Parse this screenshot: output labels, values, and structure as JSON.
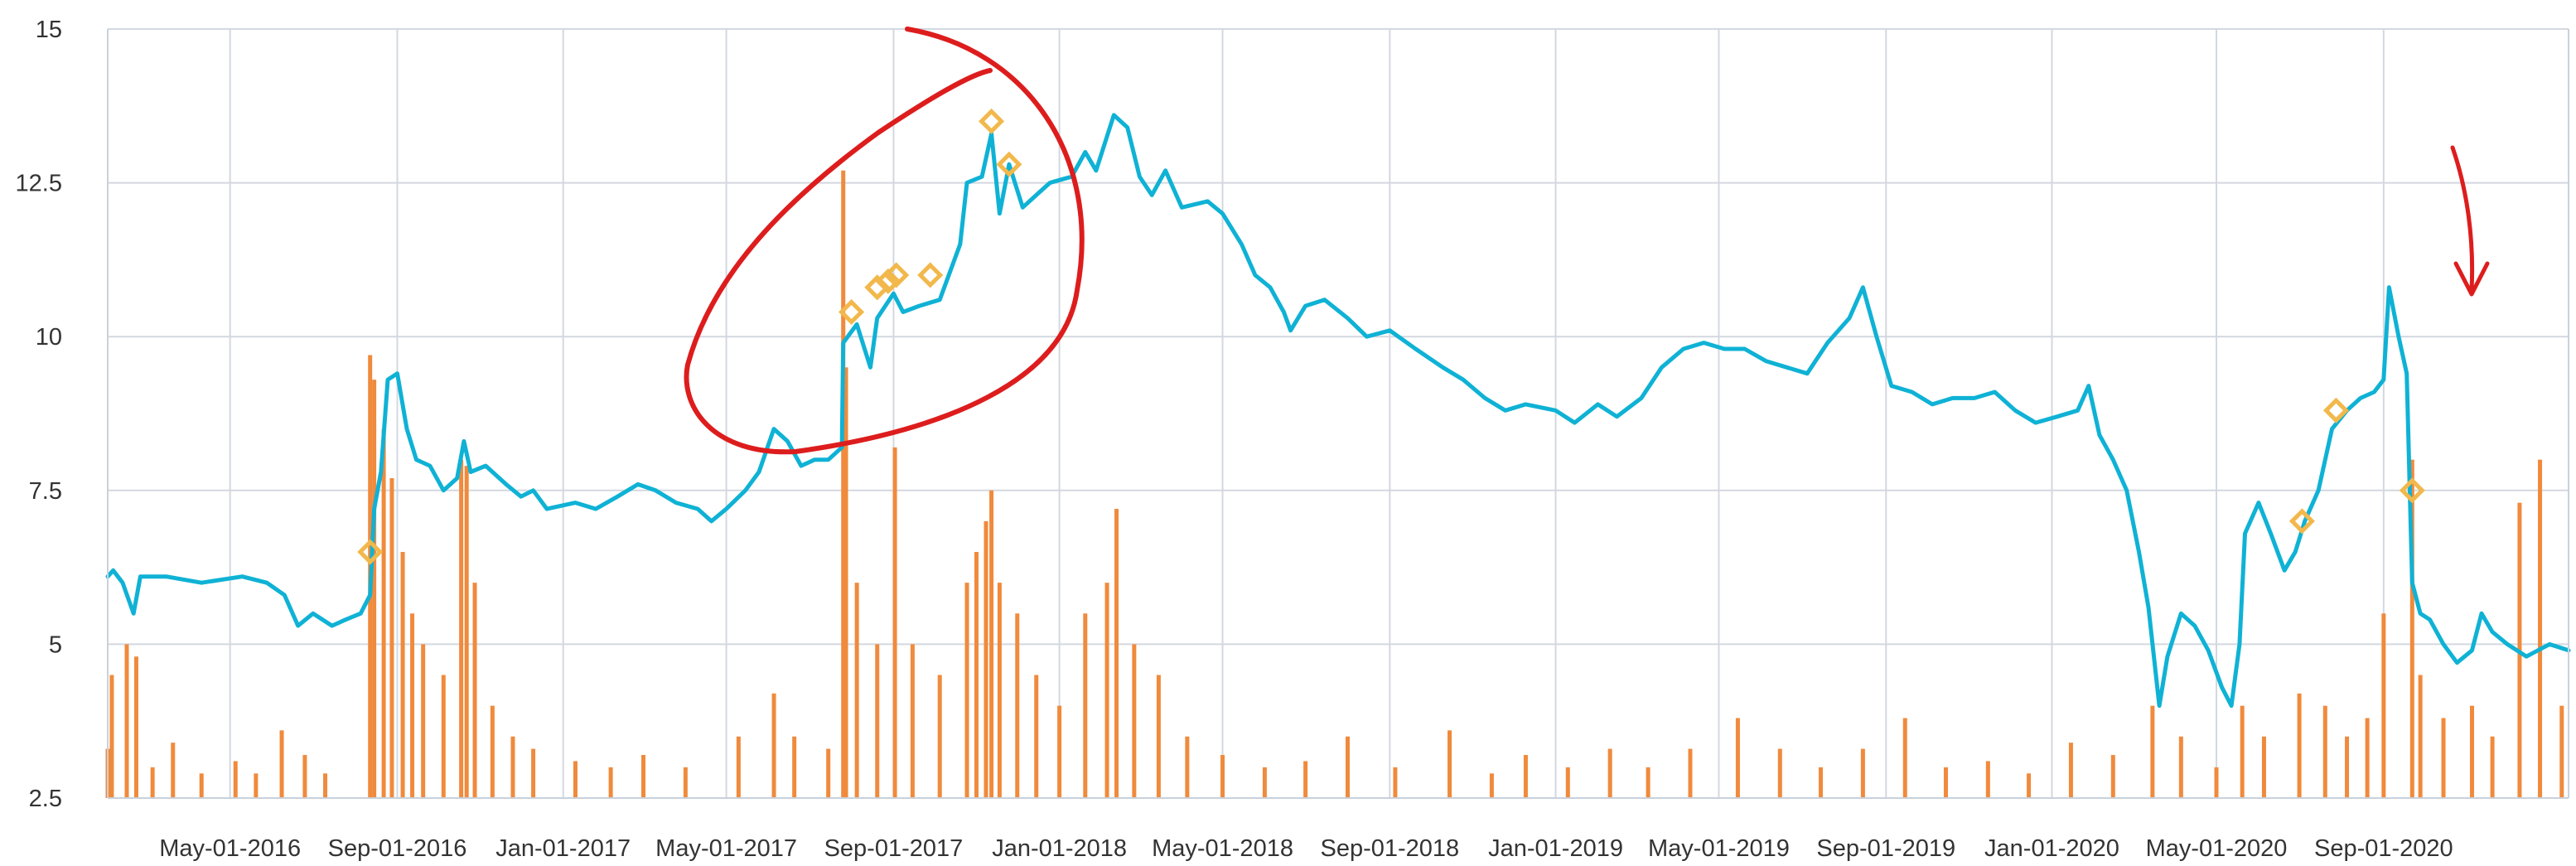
{
  "colors": {
    "price_line": "#0fb2d5",
    "volume_bars": "#f08a3c",
    "markers": "#f2b84b",
    "annotation": "#dd1d1d",
    "grid": "#d3d8e0",
    "axis_text": "#333333"
  },
  "chart_data": {
    "type": "line",
    "title": "",
    "xlabel": "",
    "ylabel": "",
    "ylim": [
      2.5,
      15
    ],
    "grid": true,
    "legend": "none",
    "y_ticks": [
      2.5,
      5,
      7.5,
      10,
      12.5,
      15
    ],
    "y_tick_labels": [
      "2.5",
      "5",
      "7.5",
      "10",
      "12.5",
      "15"
    ],
    "x_range": [
      "2016-02-01",
      "2021-01-15"
    ],
    "x_ticks": [
      "2016-05-01",
      "2016-09-01",
      "2017-01-01",
      "2017-05-01",
      "2017-09-01",
      "2018-01-01",
      "2018-05-01",
      "2018-09-01",
      "2019-01-01",
      "2019-05-01",
      "2019-09-01",
      "2020-01-01",
      "2020-05-01",
      "2020-09-01"
    ],
    "x_tick_labels": [
      "May-01-2016",
      "Sep-01-2016",
      "Jan-01-2017",
      "May-01-2017",
      "Sep-01-2017",
      "Jan-01-2018",
      "May-01-2018",
      "Sep-01-2018",
      "Jan-01-2019",
      "May-01-2019",
      "Sep-01-2019",
      "Jan-01-2020",
      "May-01-2020",
      "Sep-01-2020"
    ],
    "series": [
      {
        "type": "line",
        "color": "#0fb2d5",
        "points": [
          [
            "2016-02-01",
            6.1
          ],
          [
            "2016-02-05",
            6.2
          ],
          [
            "2016-02-12",
            6.0
          ],
          [
            "2016-02-20",
            5.5
          ],
          [
            "2016-02-25",
            6.1
          ],
          [
            "2016-03-15",
            6.1
          ],
          [
            "2016-04-10",
            6.0
          ],
          [
            "2016-05-10",
            6.1
          ],
          [
            "2016-05-28",
            6.0
          ],
          [
            "2016-06-10",
            5.8
          ],
          [
            "2016-06-20",
            5.3
          ],
          [
            "2016-07-01",
            5.5
          ],
          [
            "2016-07-15",
            5.3
          ],
          [
            "2016-07-25",
            5.4
          ],
          [
            "2016-08-05",
            5.5
          ],
          [
            "2016-08-12",
            5.8
          ],
          [
            "2016-08-15",
            7.2
          ],
          [
            "2016-08-20",
            7.8
          ],
          [
            "2016-08-25",
            9.3
          ],
          [
            "2016-09-01",
            9.4
          ],
          [
            "2016-09-08",
            8.5
          ],
          [
            "2016-09-15",
            8.0
          ],
          [
            "2016-09-25",
            7.9
          ],
          [
            "2016-10-05",
            7.5
          ],
          [
            "2016-10-15",
            7.7
          ],
          [
            "2016-10-20",
            8.3
          ],
          [
            "2016-10-25",
            7.8
          ],
          [
            "2016-11-05",
            7.9
          ],
          [
            "2016-11-20",
            7.6
          ],
          [
            "2016-12-01",
            7.4
          ],
          [
            "2016-12-10",
            7.5
          ],
          [
            "2016-12-20",
            7.2
          ],
          [
            "2017-01-10",
            7.3
          ],
          [
            "2017-01-25",
            7.2
          ],
          [
            "2017-02-10",
            7.4
          ],
          [
            "2017-02-25",
            7.6
          ],
          [
            "2017-03-10",
            7.5
          ],
          [
            "2017-03-25",
            7.3
          ],
          [
            "2017-04-10",
            7.2
          ],
          [
            "2017-04-20",
            7.0
          ],
          [
            "2017-05-01",
            7.2
          ],
          [
            "2017-05-15",
            7.5
          ],
          [
            "2017-05-25",
            7.8
          ],
          [
            "2017-06-05",
            8.5
          ],
          [
            "2017-06-15",
            8.3
          ],
          [
            "2017-06-25",
            7.9
          ],
          [
            "2017-07-05",
            8.0
          ],
          [
            "2017-07-15",
            8.0
          ],
          [
            "2017-07-20",
            8.1
          ],
          [
            "2017-07-25",
            8.2
          ],
          [
            "2017-07-26",
            9.9
          ],
          [
            "2017-08-05",
            10.2
          ],
          [
            "2017-08-15",
            9.5
          ],
          [
            "2017-08-20",
            10.3
          ],
          [
            "2017-09-01",
            10.7
          ],
          [
            "2017-09-08",
            10.4
          ],
          [
            "2017-09-20",
            10.5
          ],
          [
            "2017-10-05",
            10.6
          ],
          [
            "2017-10-20",
            11.5
          ],
          [
            "2017-10-25",
            12.5
          ],
          [
            "2017-11-05",
            12.6
          ],
          [
            "2017-11-12",
            13.3
          ],
          [
            "2017-11-18",
            12.0
          ],
          [
            "2017-11-25",
            12.8
          ],
          [
            "2017-12-05",
            12.1
          ],
          [
            "2017-12-15",
            12.3
          ],
          [
            "2017-12-25",
            12.5
          ],
          [
            "2018-01-10",
            12.6
          ],
          [
            "2018-01-20",
            13.0
          ],
          [
            "2018-01-28",
            12.7
          ],
          [
            "2018-02-10",
            13.6
          ],
          [
            "2018-02-20",
            13.4
          ],
          [
            "2018-03-01",
            12.6
          ],
          [
            "2018-03-10",
            12.3
          ],
          [
            "2018-03-20",
            12.7
          ],
          [
            "2018-04-01",
            12.1
          ],
          [
            "2018-04-20",
            12.2
          ],
          [
            "2018-05-01",
            12.0
          ],
          [
            "2018-05-15",
            11.5
          ],
          [
            "2018-05-25",
            11.0
          ],
          [
            "2018-06-05",
            10.8
          ],
          [
            "2018-06-15",
            10.4
          ],
          [
            "2018-06-20",
            10.1
          ],
          [
            "2018-07-01",
            10.5
          ],
          [
            "2018-07-15",
            10.6
          ],
          [
            "2018-08-01",
            10.3
          ],
          [
            "2018-08-15",
            10.0
          ],
          [
            "2018-09-01",
            10.1
          ],
          [
            "2018-09-20",
            9.8
          ],
          [
            "2018-10-10",
            9.5
          ],
          [
            "2018-10-25",
            9.3
          ],
          [
            "2018-11-10",
            9.0
          ],
          [
            "2018-11-25",
            8.8
          ],
          [
            "2018-12-10",
            8.9
          ],
          [
            "2019-01-01",
            8.8
          ],
          [
            "2019-01-15",
            8.6
          ],
          [
            "2019-02-01",
            8.9
          ],
          [
            "2019-02-15",
            8.7
          ],
          [
            "2019-03-05",
            9.0
          ],
          [
            "2019-03-20",
            9.5
          ],
          [
            "2019-04-05",
            9.8
          ],
          [
            "2019-04-20",
            9.9
          ],
          [
            "2019-05-05",
            9.8
          ],
          [
            "2019-05-20",
            9.8
          ],
          [
            "2019-06-05",
            9.6
          ],
          [
            "2019-06-20",
            9.5
          ],
          [
            "2019-07-05",
            9.4
          ],
          [
            "2019-07-20",
            9.9
          ],
          [
            "2019-08-05",
            10.3
          ],
          [
            "2019-08-15",
            10.8
          ],
          [
            "2019-08-25",
            10.0
          ],
          [
            "2019-09-05",
            9.2
          ],
          [
            "2019-09-20",
            9.1
          ],
          [
            "2019-10-05",
            8.9
          ],
          [
            "2019-10-20",
            9.0
          ],
          [
            "2019-11-05",
            9.0
          ],
          [
            "2019-11-20",
            9.1
          ],
          [
            "2019-12-05",
            8.8
          ],
          [
            "2019-12-20",
            8.6
          ],
          [
            "2020-01-05",
            8.7
          ],
          [
            "2020-01-20",
            8.8
          ],
          [
            "2020-01-28",
            9.2
          ],
          [
            "2020-02-05",
            8.4
          ],
          [
            "2020-02-15",
            8.0
          ],
          [
            "2020-02-25",
            7.5
          ],
          [
            "2020-03-05",
            6.5
          ],
          [
            "2020-03-12",
            5.6
          ],
          [
            "2020-03-20",
            4.0
          ],
          [
            "2020-03-26",
            4.8
          ],
          [
            "2020-04-05",
            5.5
          ],
          [
            "2020-04-15",
            5.3
          ],
          [
            "2020-04-25",
            4.9
          ],
          [
            "2020-05-05",
            4.3
          ],
          [
            "2020-05-12",
            4.0
          ],
          [
            "2020-05-18",
            5.0
          ],
          [
            "2020-05-22",
            6.8
          ],
          [
            "2020-06-01",
            7.3
          ],
          [
            "2020-06-10",
            6.8
          ],
          [
            "2020-06-20",
            6.2
          ],
          [
            "2020-06-28",
            6.5
          ],
          [
            "2020-07-05",
            7.0
          ],
          [
            "2020-07-15",
            7.5
          ],
          [
            "2020-07-25",
            8.5
          ],
          [
            "2020-08-05",
            8.8
          ],
          [
            "2020-08-15",
            9.0
          ],
          [
            "2020-08-25",
            9.1
          ],
          [
            "2020-09-01",
            9.3
          ],
          [
            "2020-09-05",
            10.8
          ],
          [
            "2020-09-12",
            10.0
          ],
          [
            "2020-09-18",
            9.4
          ],
          [
            "2020-09-22",
            6.0
          ],
          [
            "2020-09-28",
            5.5
          ],
          [
            "2020-10-05",
            5.4
          ],
          [
            "2020-10-15",
            5.0
          ],
          [
            "2020-10-25",
            4.7
          ],
          [
            "2020-11-05",
            4.9
          ],
          [
            "2020-11-12",
            5.5
          ],
          [
            "2020-11-20",
            5.2
          ],
          [
            "2020-12-01",
            5.0
          ],
          [
            "2020-12-15",
            4.8
          ],
          [
            "2021-01-01",
            5.0
          ],
          [
            "2021-01-15",
            4.9
          ]
        ]
      },
      {
        "type": "bar",
        "color": "#f08a3c",
        "baseline": 2.5,
        "points": [
          [
            "2016-02-01",
            3.3
          ],
          [
            "2016-02-04",
            4.5
          ],
          [
            "2016-02-15",
            5.0
          ],
          [
            "2016-02-22",
            4.8
          ],
          [
            "2016-03-05",
            3.0
          ],
          [
            "2016-03-20",
            3.4
          ],
          [
            "2016-04-10",
            2.9
          ],
          [
            "2016-05-05",
            3.1
          ],
          [
            "2016-05-20",
            2.9
          ],
          [
            "2016-06-08",
            3.6
          ],
          [
            "2016-06-25",
            3.2
          ],
          [
            "2016-07-10",
            2.9
          ],
          [
            "2016-08-12",
            9.7
          ],
          [
            "2016-08-15",
            9.3
          ],
          [
            "2016-08-22",
            8.5
          ],
          [
            "2016-08-28",
            7.7
          ],
          [
            "2016-09-05",
            6.5
          ],
          [
            "2016-09-12",
            5.5
          ],
          [
            "2016-09-20",
            5.0
          ],
          [
            "2016-10-05",
            4.5
          ],
          [
            "2016-10-18",
            8.0
          ],
          [
            "2016-10-22",
            7.9
          ],
          [
            "2016-10-28",
            6.0
          ],
          [
            "2016-11-10",
            4.0
          ],
          [
            "2016-11-25",
            3.5
          ],
          [
            "2016-12-10",
            3.3
          ],
          [
            "2017-01-10",
            3.1
          ],
          [
            "2017-02-05",
            3.0
          ],
          [
            "2017-03-01",
            3.2
          ],
          [
            "2017-04-01",
            3.0
          ],
          [
            "2017-05-10",
            3.5
          ],
          [
            "2017-06-05",
            4.2
          ],
          [
            "2017-06-20",
            3.5
          ],
          [
            "2017-07-15",
            3.3
          ],
          [
            "2017-07-26",
            12.7
          ],
          [
            "2017-07-28",
            9.5
          ],
          [
            "2017-08-05",
            6.0
          ],
          [
            "2017-08-20",
            5.0
          ],
          [
            "2017-09-02",
            8.2
          ],
          [
            "2017-09-15",
            5.0
          ],
          [
            "2017-10-05",
            4.5
          ],
          [
            "2017-10-25",
            6.0
          ],
          [
            "2017-11-01",
            6.5
          ],
          [
            "2017-11-08",
            7.0
          ],
          [
            "2017-11-12",
            7.5
          ],
          [
            "2017-11-18",
            6.0
          ],
          [
            "2017-12-01",
            5.5
          ],
          [
            "2017-12-15",
            4.5
          ],
          [
            "2018-01-01",
            4.0
          ],
          [
            "2018-01-20",
            5.5
          ],
          [
            "2018-02-05",
            6.0
          ],
          [
            "2018-02-12",
            7.2
          ],
          [
            "2018-02-25",
            5.0
          ],
          [
            "2018-03-15",
            4.5
          ],
          [
            "2018-04-05",
            3.5
          ],
          [
            "2018-05-01",
            3.2
          ],
          [
            "2018-06-01",
            3.0
          ],
          [
            "2018-07-01",
            3.1
          ],
          [
            "2018-08-01",
            3.5
          ],
          [
            "2018-09-05",
            3.0
          ],
          [
            "2018-10-15",
            3.6
          ],
          [
            "2018-11-15",
            2.9
          ],
          [
            "2018-12-10",
            3.2
          ],
          [
            "2019-01-10",
            3.0
          ],
          [
            "2019-02-10",
            3.3
          ],
          [
            "2019-03-10",
            3.0
          ],
          [
            "2019-04-10",
            3.3
          ],
          [
            "2019-05-15",
            3.8
          ],
          [
            "2019-06-15",
            3.3
          ],
          [
            "2019-07-15",
            3.0
          ],
          [
            "2019-08-15",
            3.3
          ],
          [
            "2019-09-15",
            3.8
          ],
          [
            "2019-10-15",
            3.0
          ],
          [
            "2019-11-15",
            3.1
          ],
          [
            "2019-12-15",
            2.9
          ],
          [
            "2020-01-15",
            3.4
          ],
          [
            "2020-02-15",
            3.2
          ],
          [
            "2020-03-15",
            4.0
          ],
          [
            "2020-04-05",
            3.5
          ],
          [
            "2020-05-01",
            3.0
          ],
          [
            "2020-05-20",
            4.0
          ],
          [
            "2020-06-05",
            3.5
          ],
          [
            "2020-07-01",
            4.2
          ],
          [
            "2020-07-20",
            4.0
          ],
          [
            "2020-08-05",
            3.5
          ],
          [
            "2020-08-20",
            3.8
          ],
          [
            "2020-09-01",
            5.5
          ],
          [
            "2020-09-22",
            8.0
          ],
          [
            "2020-09-28",
            4.5
          ],
          [
            "2020-10-15",
            3.8
          ],
          [
            "2020-11-05",
            4.0
          ],
          [
            "2020-11-20",
            3.5
          ],
          [
            "2020-12-10",
            7.3
          ],
          [
            "2020-12-25",
            8.0
          ],
          [
            "2021-01-10",
            4.0
          ]
        ]
      },
      {
        "type": "scatter",
        "marker": "diamond",
        "color": "#f2b84b",
        "points": [
          [
            "2016-08-12",
            6.5
          ],
          [
            "2017-08-01",
            10.4
          ],
          [
            "2017-08-20",
            10.8
          ],
          [
            "2017-08-28",
            10.9
          ],
          [
            "2017-09-03",
            11.0
          ],
          [
            "2017-09-28",
            11.0
          ],
          [
            "2017-11-12",
            13.5
          ],
          [
            "2017-11-25",
            12.8
          ],
          [
            "2020-07-03",
            7.0
          ],
          [
            "2020-07-28",
            8.8
          ],
          [
            "2020-09-22",
            7.5
          ]
        ]
      }
    ]
  }
}
